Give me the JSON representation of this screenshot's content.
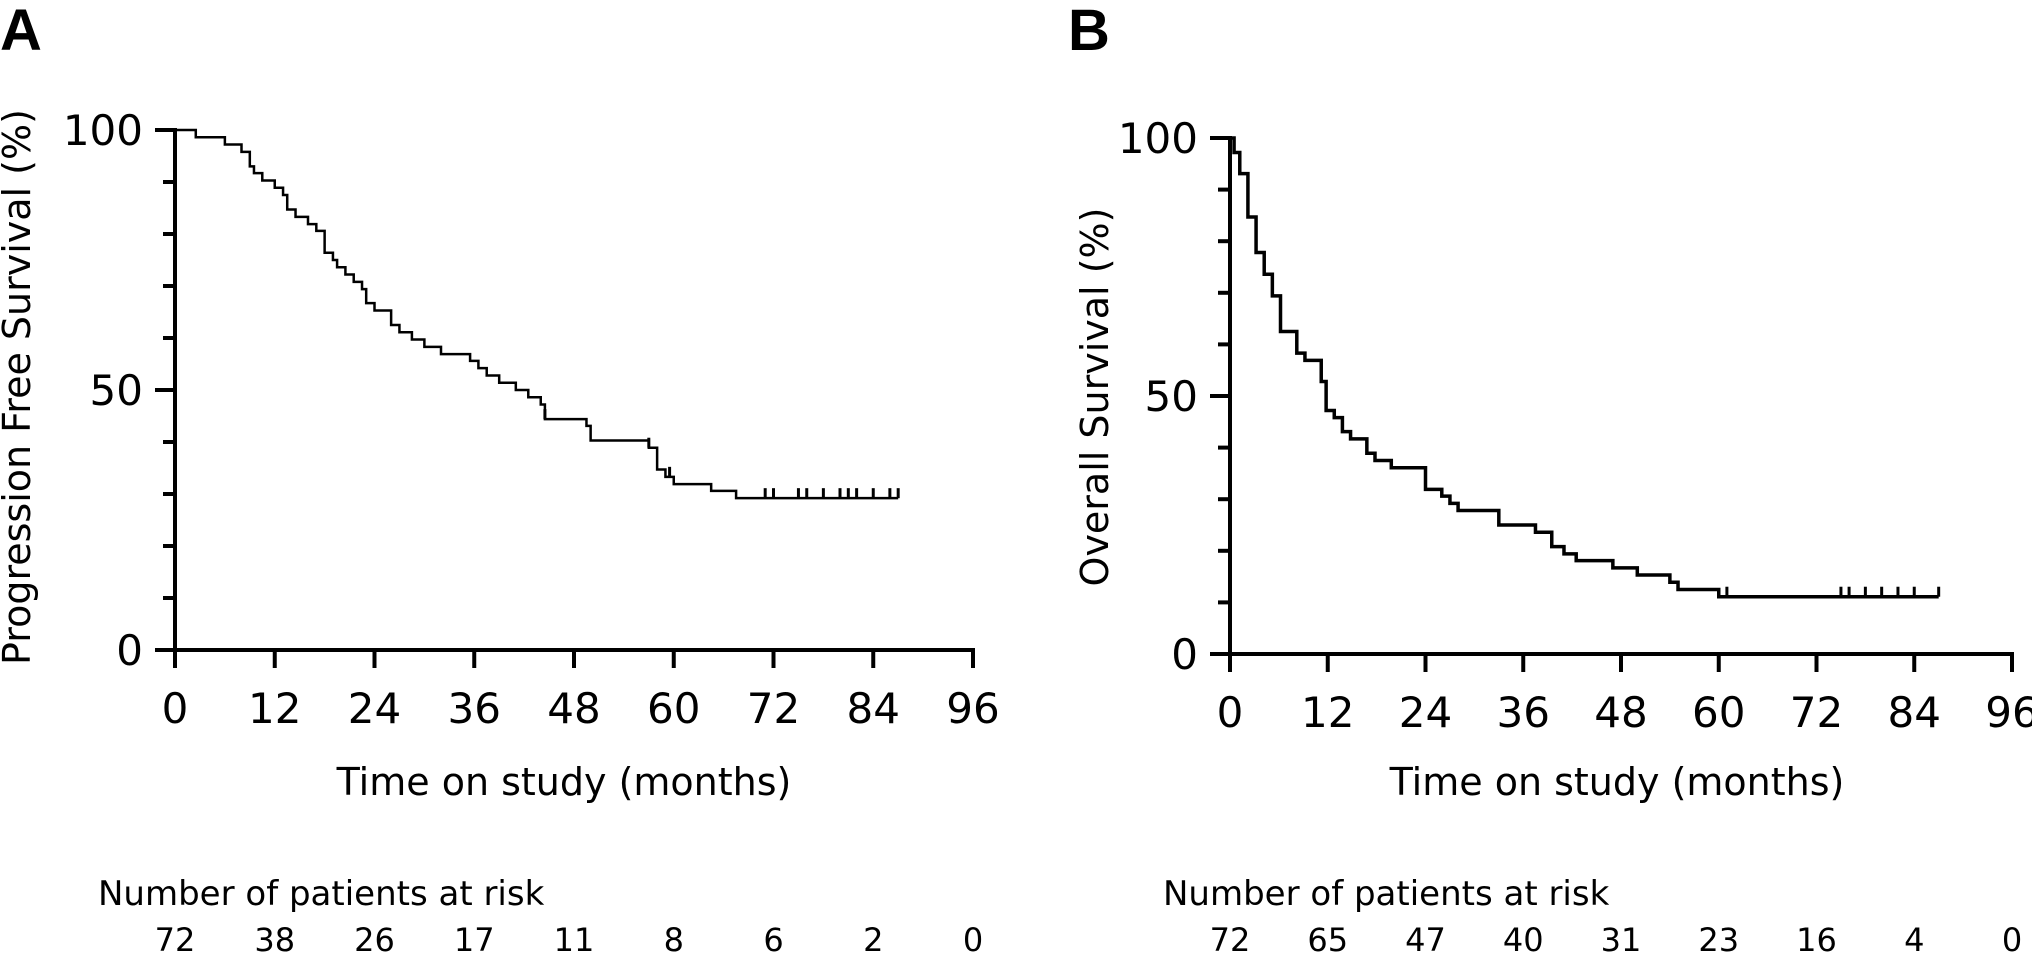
{
  "chart_data": [
    {
      "type": "line",
      "step": true,
      "panel_label": "A",
      "xlabel": "Time on study (months)",
      "ylabel": "Progression Free Survival (%)",
      "xlim": [
        0,
        96
      ],
      "ylim": [
        0,
        100
      ],
      "x_ticks": [
        "0",
        "12",
        "24",
        "36",
        "48",
        "60",
        "72",
        "84",
        "96"
      ],
      "y_ticks": [
        "0",
        "50",
        "100"
      ],
      "y_minor_step": 10,
      "series": [
        {
          "points": [
            [
              0,
              100
            ],
            [
              2.5,
              98.6
            ],
            [
              6,
              97.2
            ],
            [
              8,
              95.8
            ],
            [
              9,
              93
            ],
            [
              9.5,
              91.7
            ],
            [
              10.5,
              90.3
            ],
            [
              12,
              88.9
            ],
            [
              13,
              87.5
            ],
            [
              13.5,
              84.7
            ],
            [
              14.5,
              83.3
            ],
            [
              16,
              81.9
            ],
            [
              17,
              80.6
            ],
            [
              18,
              76.4
            ],
            [
              19,
              75
            ],
            [
              19.5,
              73.6
            ],
            [
              20.5,
              72.2
            ],
            [
              21.5,
              70.8
            ],
            [
              22.5,
              69.4
            ],
            [
              23,
              66.7
            ],
            [
              24,
              65.3
            ],
            [
              26,
              62.5
            ],
            [
              27,
              61.1
            ],
            [
              28.5,
              59.7
            ],
            [
              30,
              58.3
            ],
            [
              32,
              56.9
            ],
            [
              35.5,
              55.6
            ],
            [
              36.5,
              54.2
            ],
            [
              37.5,
              52.8
            ],
            [
              39,
              51.4
            ],
            [
              41,
              50
            ],
            [
              42.5,
              48.6
            ],
            [
              44,
              47.2
            ],
            [
              44.5,
              44.4
            ],
            [
              49.5,
              43.1
            ],
            [
              50,
              40.3
            ],
            [
              57,
              38.9
            ],
            [
              58,
              34.7
            ],
            [
              59,
              33.3
            ],
            [
              60,
              31.9
            ],
            [
              64.5,
              30.6
            ],
            [
              67.5,
              29.2
            ],
            [
              87,
              29.2
            ]
          ],
          "censor_x": [
            44.5,
            57,
            59.5,
            71,
            72,
            75,
            76,
            78,
            80,
            81,
            82,
            84,
            86,
            87
          ]
        }
      ],
      "risk_table": {
        "title": "Number of patients at risk",
        "times": [
          0,
          12,
          24,
          36,
          48,
          60,
          72,
          84,
          96
        ],
        "counts": [
          "72",
          "38",
          "26",
          "17",
          "11",
          "8",
          "6",
          "2",
          "0"
        ]
      }
    },
    {
      "type": "line",
      "step": true,
      "panel_label": "B",
      "xlabel": "Time on study (months)",
      "ylabel": "Overall Survival (%)",
      "xlim": [
        0,
        96
      ],
      "ylim": [
        0,
        100
      ],
      "x_ticks": [
        "0",
        "12",
        "24",
        "36",
        "48",
        "60",
        "72",
        "84",
        "96"
      ],
      "y_ticks": [
        "0",
        "50",
        "100"
      ],
      "y_minor_step": 10,
      "series": [
        {
          "points": [
            [
              0,
              100
            ],
            [
              0.5,
              97.2
            ],
            [
              1.2,
              93.1
            ],
            [
              2.2,
              84.7
            ],
            [
              3.2,
              77.8
            ],
            [
              4.2,
              73.6
            ],
            [
              5.2,
              69.4
            ],
            [
              6.2,
              62.5
            ],
            [
              8.2,
              58.3
            ],
            [
              9.2,
              56.9
            ],
            [
              11.2,
              52.8
            ],
            [
              11.8,
              47.2
            ],
            [
              12.8,
              45.8
            ],
            [
              13.8,
              43.1
            ],
            [
              14.8,
              41.7
            ],
            [
              16.8,
              38.9
            ],
            [
              17.8,
              37.5
            ],
            [
              19.8,
              36.1
            ],
            [
              24,
              31.9
            ],
            [
              26,
              30.6
            ],
            [
              27,
              29.2
            ],
            [
              28,
              27.8
            ],
            [
              33,
              25
            ],
            [
              37.5,
              23.6
            ],
            [
              39.5,
              20.8
            ],
            [
              41,
              19.4
            ],
            [
              42.5,
              18.1
            ],
            [
              47,
              16.7
            ],
            [
              50,
              15.3
            ],
            [
              54,
              13.9
            ],
            [
              55,
              12.5
            ],
            [
              60,
              11.1
            ],
            [
              87,
              11.1
            ]
          ],
          "censor_x": [
            61,
            75,
            76,
            78,
            80,
            82,
            84,
            87
          ]
        }
      ],
      "risk_table": {
        "title": "Number of patients at risk",
        "times": [
          0,
          12,
          24,
          36,
          48,
          60,
          72,
          84,
          96
        ],
        "counts": [
          "72",
          "65",
          "47",
          "40",
          "31",
          "23",
          "16",
          "4",
          "0"
        ]
      }
    }
  ]
}
